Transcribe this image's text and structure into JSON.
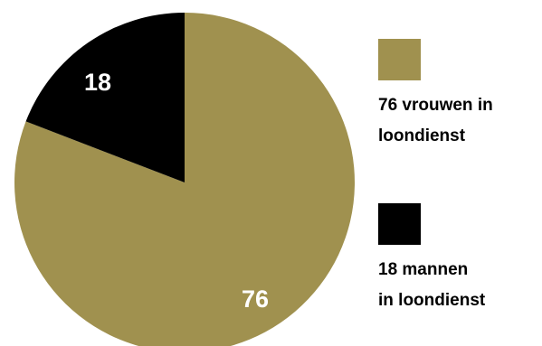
{
  "chart_data": {
    "type": "pie",
    "title": "",
    "slices": [
      {
        "label": "76 vrouwen in loondienst",
        "value": 76,
        "display": "76",
        "color": "#a0914f"
      },
      {
        "label": "18 mannen in loondienst",
        "value": 18,
        "display": "18",
        "color": "#000000"
      }
    ],
    "legend": {
      "placement": "right",
      "items": [
        {
          "lines": [
            "76 vrouwen in",
            "loondienst"
          ],
          "color": "#a0914f"
        },
        {
          "lines": [
            "18 mannen",
            "in loondienst"
          ],
          "color": "#000000"
        }
      ]
    }
  }
}
